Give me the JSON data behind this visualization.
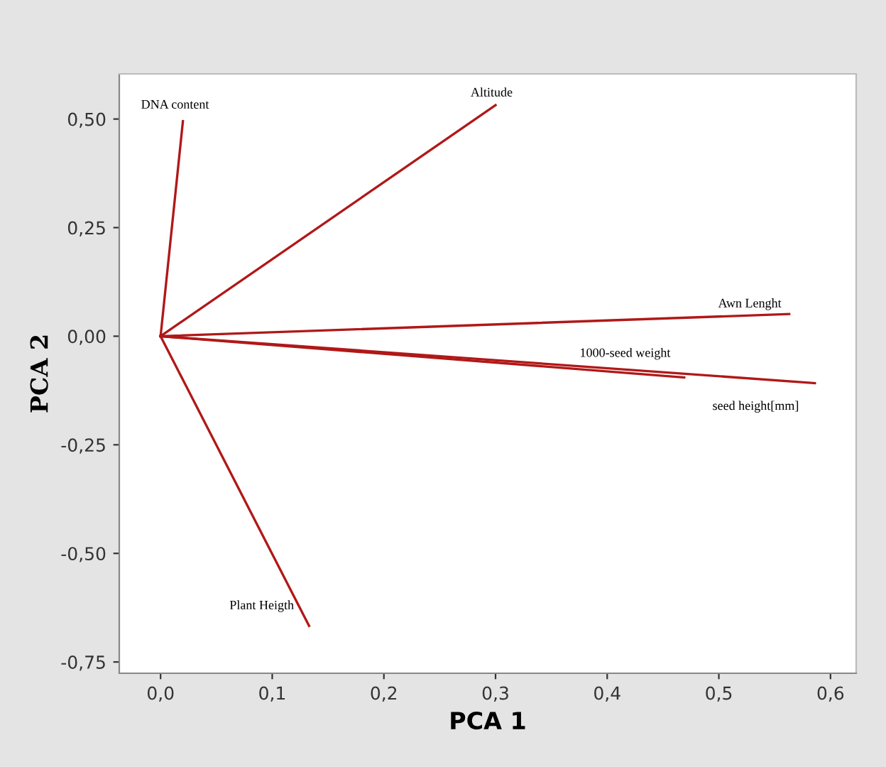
{
  "chart_data": {
    "type": "line",
    "xlabel": "PCA 1",
    "ylabel": "PCA 2",
    "marker": "none",
    "line_style": "solid",
    "grid": false,
    "legend": false,
    "xlim": [
      -0.037,
      0.623
    ],
    "ylim": [
      -0.776,
      0.604
    ],
    "xticks": [
      {
        "value": 0,
        "label": "0,0"
      },
      {
        "value": 0.1,
        "label": "0,1"
      },
      {
        "value": 0.2,
        "label": "0,2"
      },
      {
        "value": 0.3,
        "label": "0,3"
      },
      {
        "value": 0.4,
        "label": "0,4"
      },
      {
        "value": 0.5,
        "label": "0,5"
      },
      {
        "value": 0.6,
        "label": "0,6"
      }
    ],
    "yticks": [
      {
        "value": -0.75,
        "label": "-0,75"
      },
      {
        "value": -0.5,
        "label": "-0,50"
      },
      {
        "value": -0.25,
        "label": "-0,25"
      },
      {
        "value": 0,
        "label": "0,00"
      },
      {
        "value": 0.25,
        "label": "0,25"
      },
      {
        "value": 0.5,
        "label": "0,50"
      }
    ],
    "series": [
      {
        "name": "DNA content",
        "color": "#b01818",
        "x": [
          0,
          0.02
        ],
        "values": [
          0,
          0.495
        ]
      },
      {
        "name": "Altitude",
        "color": "#b01818",
        "x": [
          0,
          0.3
        ],
        "values": [
          0,
          0.532
        ]
      },
      {
        "name": "Awn Lenght",
        "color": "#b01818",
        "x": [
          0,
          0.563
        ],
        "values": [
          0,
          0.051
        ]
      },
      {
        "name": "1000-seed weight",
        "color": "#b01818",
        "x": [
          0,
          0.469
        ],
        "values": [
          0,
          -0.095
        ]
      },
      {
        "name": "seed height[mm]",
        "color": "#b01818",
        "x": [
          0,
          0.586
        ],
        "values": [
          0,
          -0.108
        ]
      },
      {
        "name": "Plant Heigth",
        "color": "#b01818",
        "x": [
          0,
          0.133
        ],
        "values": [
          0,
          -0.667
        ]
      }
    ]
  }
}
